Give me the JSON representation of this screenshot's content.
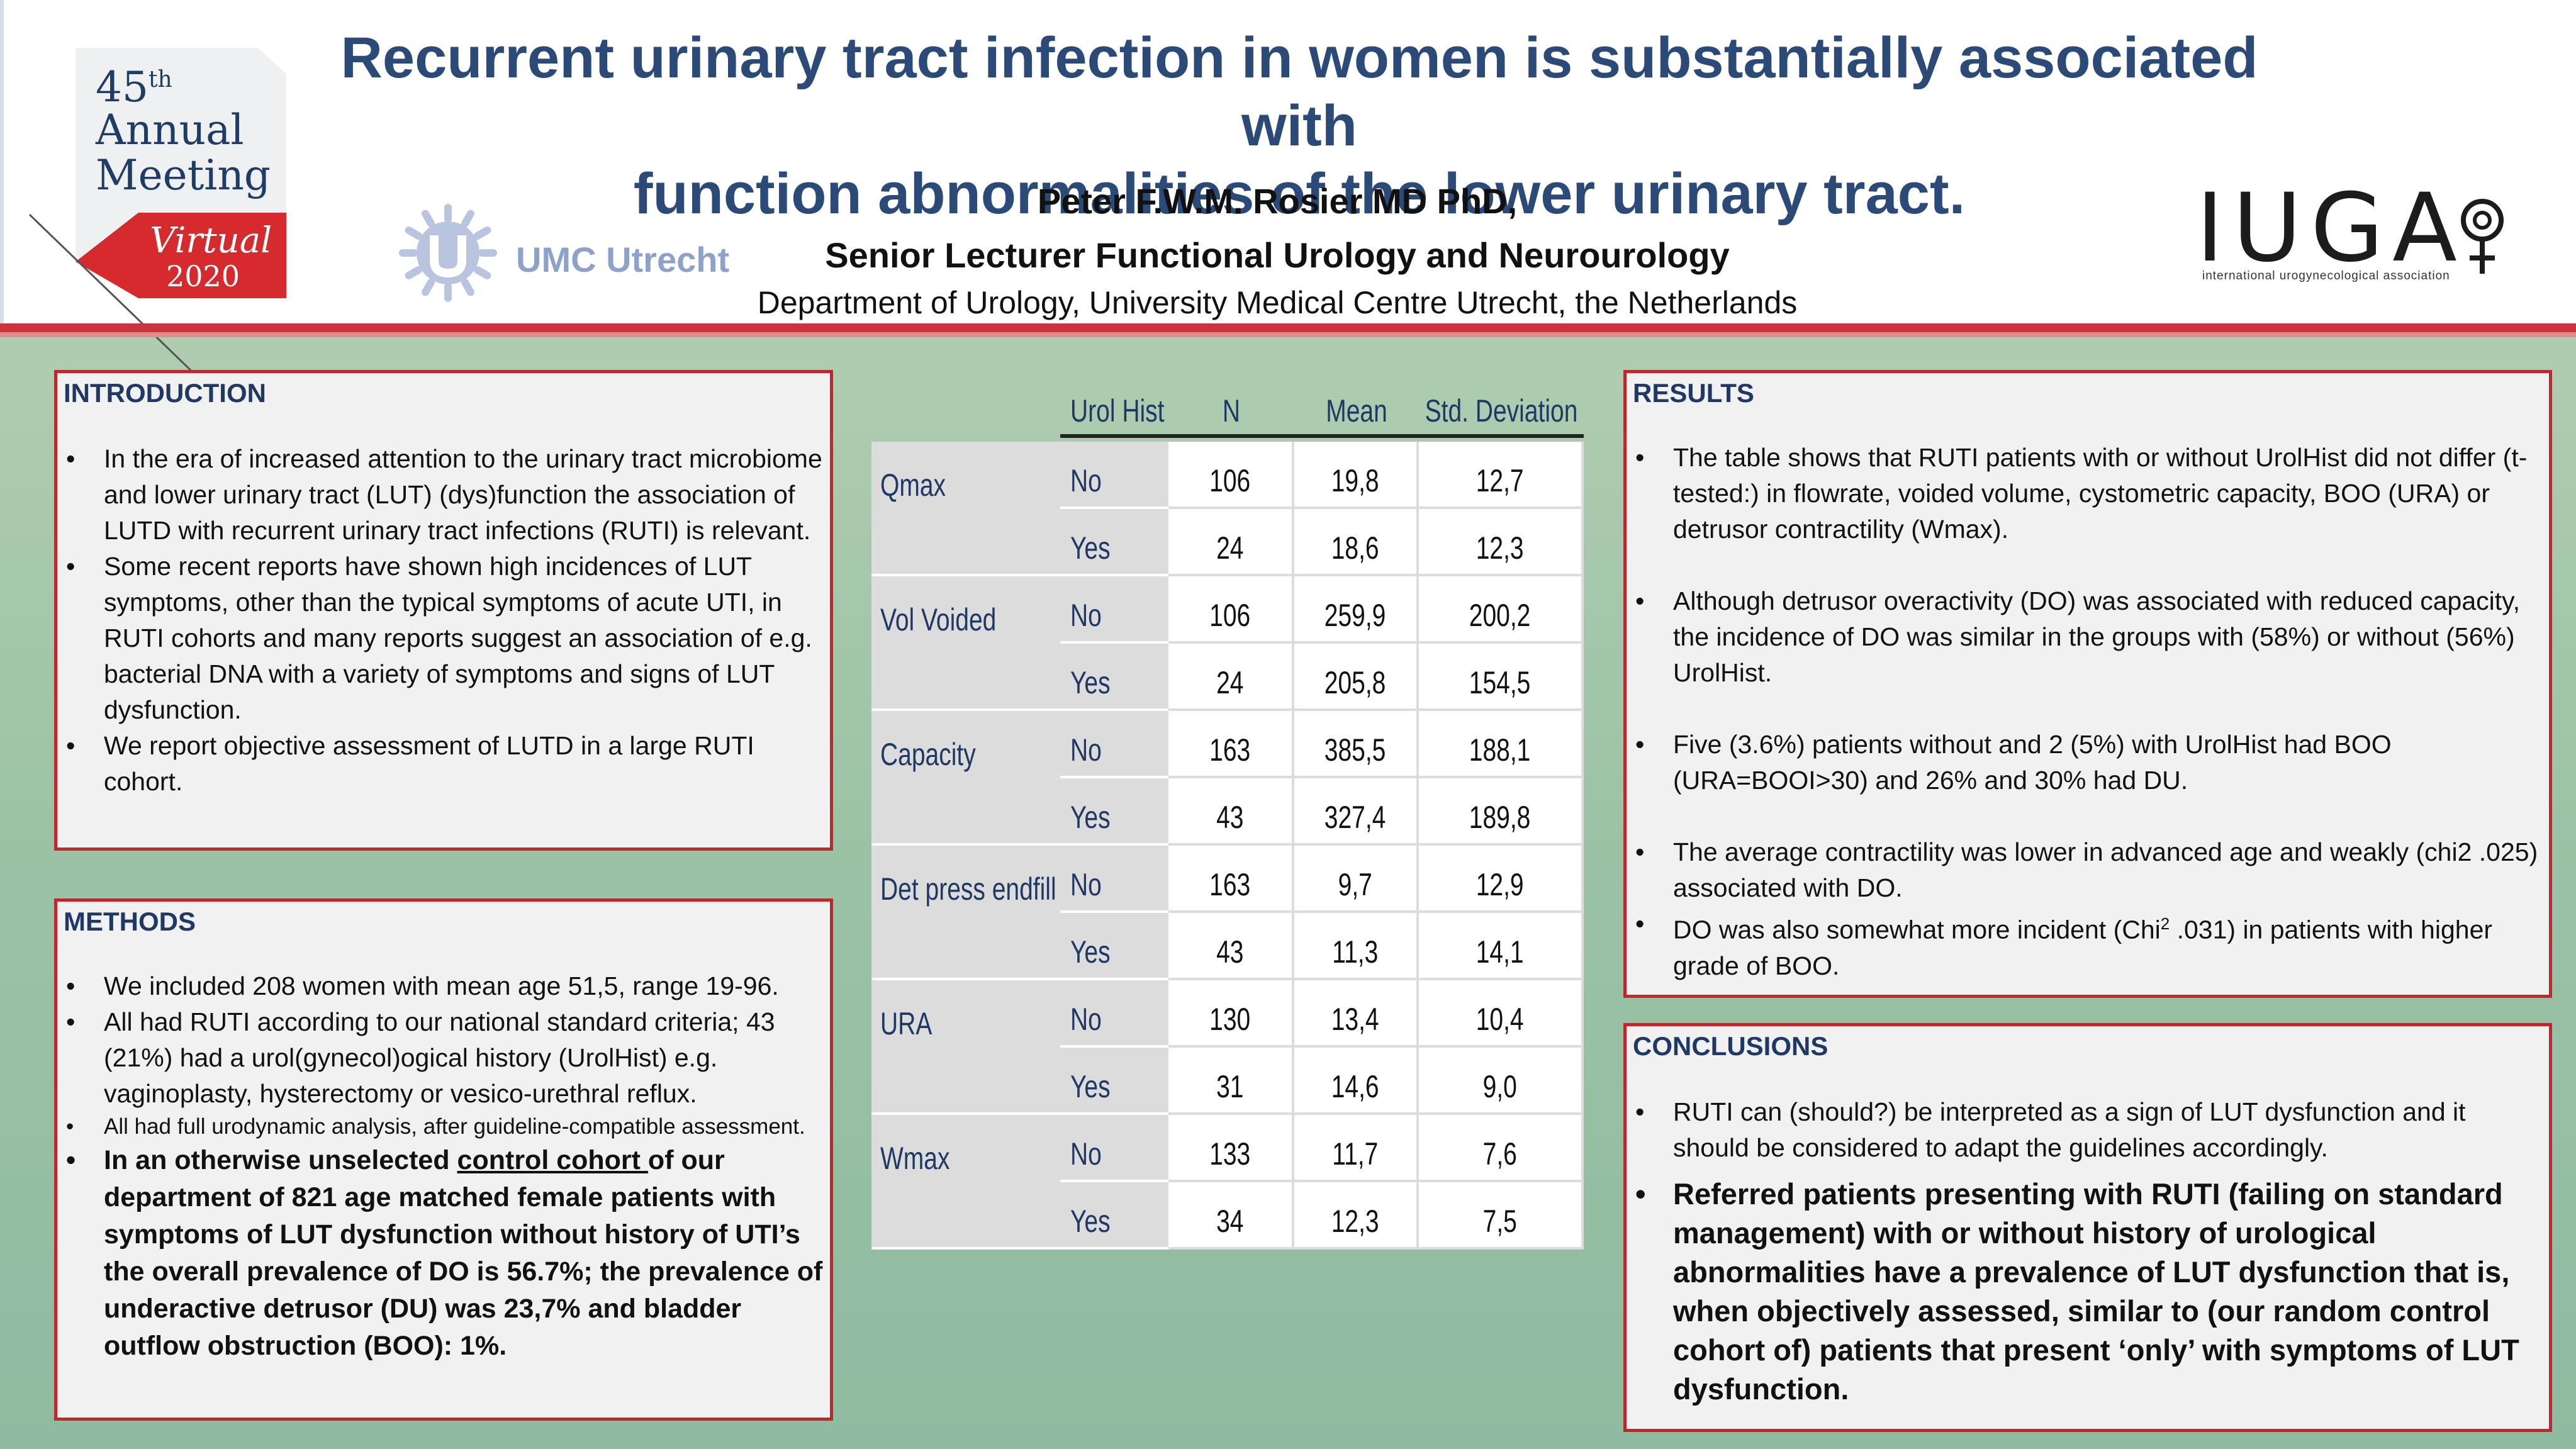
{
  "header": {
    "title_line1": "Recurrent urinary tract infection in women is substantially associated with",
    "title_line2": "function abnormalities of the lower urinary tract.",
    "author": "Peter F.W.M. Rosier MD PhD,",
    "role": "Senior Lecturer Functional Urology and Neurourology",
    "department": "Department of Urology, University Medical Centre Utrecht, the Netherlands"
  },
  "meeting_badge": {
    "number": "45",
    "ordinal": "th",
    "line2": "Annual",
    "line3": "Meeting",
    "virtual": "Virtual",
    "year": "2020"
  },
  "logos": {
    "umc": "UMC Utrecht",
    "iuga": "IUGA",
    "iuga_sub": "international urogynecological association"
  },
  "introduction": {
    "heading": "INTRODUCTION",
    "items": [
      "In the era of increased attention to the urinary tract microbiome and lower urinary tract (LUT) (dys)function the association of LUTD with recurrent urinary tract infections (RUTI) is relevant.",
      "Some recent reports have shown high incidences of LUT symptoms, other than the typical symptoms of acute UTI, in RUTI cohorts and many reports suggest an association of e.g. bacterial DNA with a variety of symptoms and signs of LUT dysfunction.",
      "We report objective assessment of LUTD in a large RUTI cohort."
    ]
  },
  "methods": {
    "heading": "METHODS",
    "items": [
      "We included 208 women with mean age 51,5, range 19-96.",
      "All had RUTI according to our national standard criteria; 43 (21%) had a urol(gynecol)ogical history (UrolHist) e.g. vaginoplasty, hysterectomy or vesico-urethral reflux.",
      "All had full urodynamic analysis, after guideline-compatible assessment."
    ],
    "final_pre": "In an otherwise unselected ",
    "final_underlined": "control cohort ",
    "final_post": "of our department of 821 age matched female patients with symptoms of LUT dysfunction without history of UTI’s the overall prevalence of DO is 56.7%; the prevalence of underactive detrusor (DU) was 23,7% and bladder outflow obstruction (BOO): 1%."
  },
  "table": {
    "headers": [
      "Urol Hist",
      "N",
      "Mean",
      "Std. Deviation"
    ],
    "groups": [
      {
        "name": "Qmax",
        "rows": [
          [
            "No",
            "106",
            "19,8",
            "12,7"
          ],
          [
            "Yes",
            "24",
            "18,6",
            "12,3"
          ]
        ]
      },
      {
        "name": "Vol Voided",
        "rows": [
          [
            "No",
            "106",
            "259,9",
            "200,2"
          ],
          [
            "Yes",
            "24",
            "205,8",
            "154,5"
          ]
        ]
      },
      {
        "name": "Capacity",
        "rows": [
          [
            "No",
            "163",
            "385,5",
            "188,1"
          ],
          [
            "Yes",
            "43",
            "327,4",
            "189,8"
          ]
        ]
      },
      {
        "name": "Det press endfill",
        "rows": [
          [
            "No",
            "163",
            "9,7",
            "12,9"
          ],
          [
            "Yes",
            "43",
            "11,3",
            "14,1"
          ]
        ]
      },
      {
        "name": "URA",
        "rows": [
          [
            "No",
            "130",
            "13,4",
            "10,4"
          ],
          [
            "Yes",
            "31",
            "14,6",
            "9,0"
          ]
        ]
      },
      {
        "name": "Wmax",
        "rows": [
          [
            "No",
            "133",
            "11,7",
            "7,6"
          ],
          [
            "Yes",
            "34",
            "12,3",
            "7,5"
          ]
        ]
      }
    ]
  },
  "results": {
    "heading": "RESULTS",
    "items": [
      "The table shows that RUTI patients with or without UrolHist did not differ (t-tested:) in flowrate, voided volume, cystometric capacity, BOO (URA) or detrusor contractility (Wmax).",
      "Although detrusor overactivity (DO) was associated with reduced capacity, the incidence of DO was similar in the groups with (58%) or without (56%) UrolHist.",
      "Five (3.6%) patients without and 2 (5%) with UrolHist had BOO (URA=BOOI>30) and 26% and 30% had DU.",
      "The average contractility was lower in advanced age and weakly (chi2 .025) associated with DO."
    ],
    "last_pre": "DO was also somewhat more incident (Chi",
    "last_sup": "2",
    "last_post": " .031) in patients with higher grade of BOO."
  },
  "conclusions": {
    "heading": "CONCLUSIONS",
    "items": [
      "RUTI can (should?) be interpreted as a sign of LUT dysfunction and it should be considered to adapt the guidelines accordingly.",
      "Referred patients presenting with RUTI (failing on standard management) with or without history of urological abnormalities have a prevalence of LUT dysfunction that is, when objectively assessed, similar to (our random control cohort of)  patients that present ‘only’ with symptoms of LUT dysfunction."
    ]
  },
  "colors": {
    "title": "#2c4a78",
    "panel_border": "#c0272d",
    "heading": "#1f3864",
    "header_band": "#c9353a"
  }
}
